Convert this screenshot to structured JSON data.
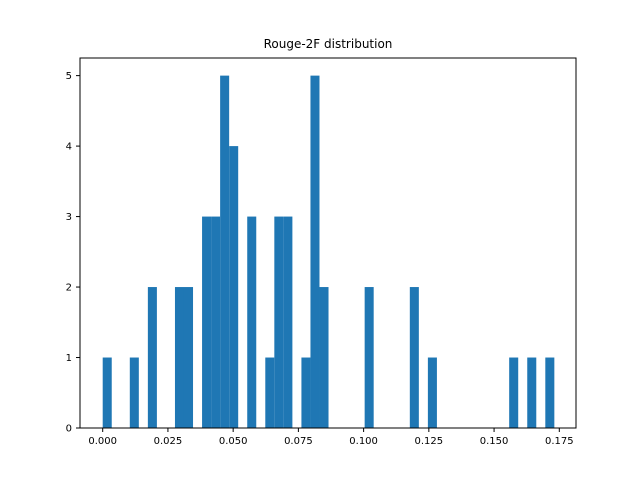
{
  "chart_data": {
    "type": "bar",
    "title": "Rouge-2F distribution",
    "xlabel": "",
    "ylabel": "",
    "bar_color": "#1f77b4",
    "xlim": [
      -0.0087,
      0.1814
    ],
    "ylim": [
      0,
      5.25
    ],
    "bin_width": 0.003462,
    "bins": [
      {
        "x0": 0.0,
        "count": 1
      },
      {
        "x0": 0.010386,
        "count": 1
      },
      {
        "x0": 0.01731,
        "count": 2
      },
      {
        "x0": 0.027696,
        "count": 2
      },
      {
        "x0": 0.031158,
        "count": 2
      },
      {
        "x0": 0.038082,
        "count": 3
      },
      {
        "x0": 0.041544,
        "count": 3
      },
      {
        "x0": 0.045006,
        "count": 5
      },
      {
        "x0": 0.048468,
        "count": 4
      },
      {
        "x0": 0.055392,
        "count": 3
      },
      {
        "x0": 0.062316,
        "count": 1
      },
      {
        "x0": 0.065778,
        "count": 3
      },
      {
        "x0": 0.06924,
        "count": 3
      },
      {
        "x0": 0.076164,
        "count": 1
      },
      {
        "x0": 0.079626,
        "count": 5
      },
      {
        "x0": 0.083088,
        "count": 2
      },
      {
        "x0": 0.100398,
        "count": 2
      },
      {
        "x0": 0.117708,
        "count": 2
      },
      {
        "x0": 0.124632,
        "count": 1
      },
      {
        "x0": 0.15579,
        "count": 1
      },
      {
        "x0": 0.162714,
        "count": 1
      },
      {
        "x0": 0.169638,
        "count": 1
      }
    ],
    "xticks": [
      {
        "value": 0.0,
        "label": "0.000"
      },
      {
        "value": 0.025,
        "label": "0.025"
      },
      {
        "value": 0.05,
        "label": "0.050"
      },
      {
        "value": 0.075,
        "label": "0.075"
      },
      {
        "value": 0.1,
        "label": "0.100"
      },
      {
        "value": 0.125,
        "label": "0.125"
      },
      {
        "value": 0.15,
        "label": "0.150"
      },
      {
        "value": 0.175,
        "label": "0.175"
      }
    ],
    "yticks": [
      {
        "value": 0,
        "label": "0"
      },
      {
        "value": 1,
        "label": "1"
      },
      {
        "value": 2,
        "label": "2"
      },
      {
        "value": 3,
        "label": "3"
      },
      {
        "value": 4,
        "label": "4"
      },
      {
        "value": 5,
        "label": "5"
      }
    ],
    "grid": false,
    "legend": "none"
  }
}
